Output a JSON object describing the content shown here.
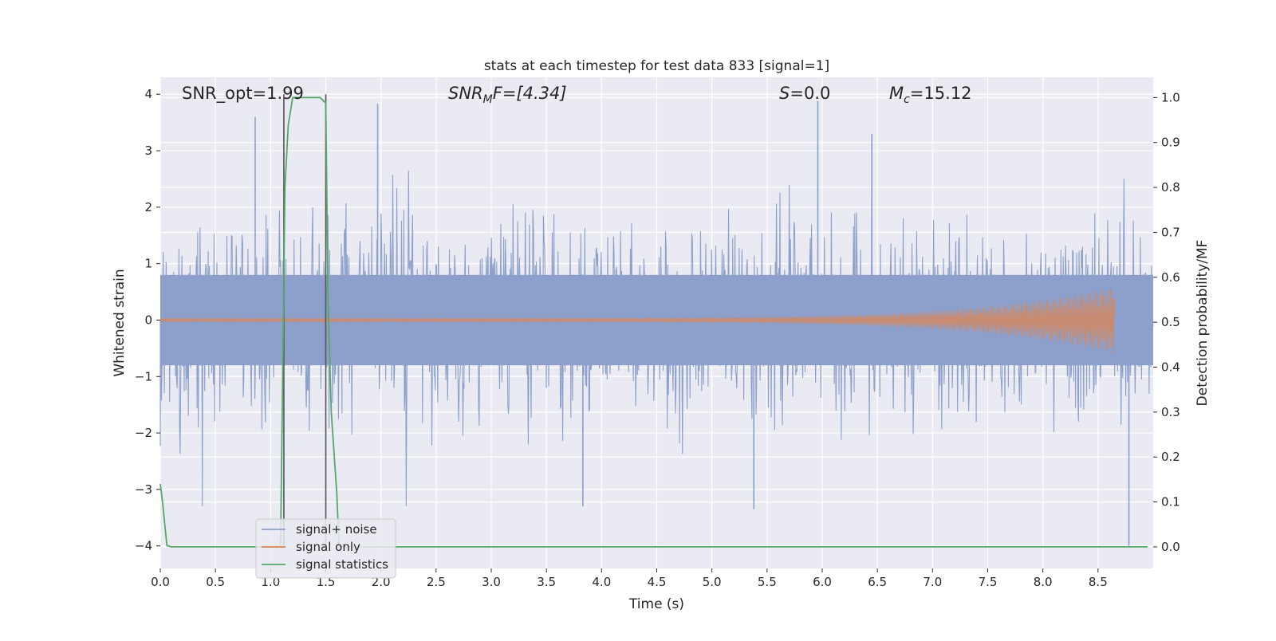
{
  "chart_data": {
    "type": "line",
    "title": "stats at each timestep for test data 833 [signal=1]",
    "xlabel": "Time (s)",
    "ylabel": "Whitened strain",
    "ylabel_right": "Detection probability/MF",
    "xlim": [
      0.0,
      9.0
    ],
    "ylim": [
      -4.4,
      4.3
    ],
    "ylim_right": [
      -0.048,
      1.045
    ],
    "xticks": [
      "0.0",
      "0.5",
      "1.0",
      "1.5",
      "2.0",
      "2.5",
      "3.0",
      "3.5",
      "4.0",
      "4.5",
      "5.0",
      "5.5",
      "6.0",
      "6.5",
      "7.0",
      "7.5",
      "8.0",
      "8.5"
    ],
    "yticks": [
      "4",
      "3",
      "2",
      "1",
      "0",
      "−1",
      "−2",
      "−3",
      "−4"
    ],
    "yticks_right": [
      "1.0",
      "0.9",
      "0.8",
      "0.7",
      "0.6",
      "0.5",
      "0.4",
      "0.3",
      "0.2",
      "0.1",
      "0.0"
    ],
    "grid": true,
    "legend_position": "lower-left",
    "colors": {
      "noise": "#8da0cb",
      "signal": "#dd8452",
      "statistics": "#55a868",
      "vlines": "#555555",
      "background": "#eaeaf2"
    },
    "annotations": {
      "snr_opt": "SNR_opt=1.99",
      "snr_mf_main": "SNR",
      "snr_mf_sub": "M",
      "snr_mf_rest": "F=[4.34]",
      "s_main": "S",
      "s_rest": "=0.0",
      "mc_main": "M",
      "mc_sub": "c",
      "mc_rest": "=15.12"
    },
    "vertical_lines_x": [
      1.12,
      1.5
    ],
    "series": [
      {
        "name": "signal+ noise",
        "kind": "noise",
        "x_range": [
          0.0,
          9.0
        ],
        "core_amplitude": 0.8,
        "typical_peak": 1.5,
        "max_peaks": [
          {
            "x": 0.86,
            "y": 3.6
          },
          {
            "x": 1.97,
            "y": 3.83
          },
          {
            "x": 5.96,
            "y": 3.88
          },
          {
            "x": 6.45,
            "y": 3.3
          },
          {
            "x": 8.78,
            "y": -4.0
          },
          {
            "x": 5.38,
            "y": -3.35
          },
          {
            "x": 3.83,
            "y": -3.3
          }
        ]
      },
      {
        "name": "signal only",
        "kind": "chirp",
        "x_range": [
          0.0,
          8.65
        ],
        "peak_amplitude": 0.55
      },
      {
        "name": "signal statistics",
        "kind": "statistic",
        "x": [
          0.0,
          0.02,
          0.06,
          0.1,
          0.2,
          1.0,
          1.05,
          1.09,
          1.11,
          1.13,
          1.16,
          1.2,
          1.3,
          1.45,
          1.49,
          1.5,
          1.52,
          1.55,
          1.6,
          1.62,
          1.7,
          8.95
        ],
        "y": [
          0.14,
          0.1,
          0.003,
          0.0,
          0.0,
          0.0,
          0.0,
          0.0,
          0.4,
          0.8,
          0.94,
          1.0,
          1.0,
          1.0,
          0.99,
          0.99,
          0.55,
          0.3,
          0.12,
          0.0,
          0.0,
          0.0
        ]
      }
    ]
  }
}
